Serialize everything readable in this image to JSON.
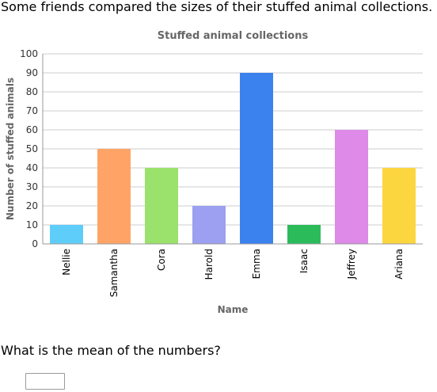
{
  "problem": {
    "intro": "Some friends compared the sizes of their stuffed animal collections.",
    "question": "What is the mean of the numbers?",
    "answer_value": ""
  },
  "chart_data": {
    "type": "bar",
    "title": "Stuffed animal collections",
    "xlabel": "Name",
    "ylabel": "Number of stuffed animals",
    "categories": [
      "Nellie",
      "Samantha",
      "Cora",
      "Harold",
      "Emma",
      "Isaac",
      "Jeffrey",
      "Ariana"
    ],
    "values": [
      10,
      50,
      40,
      20,
      90,
      10,
      60,
      40
    ],
    "colors": [
      "#5fcdfa",
      "#ffa466",
      "#9ae26b",
      "#9d9ff0",
      "#3b82ef",
      "#2bbb5a",
      "#de8ae8",
      "#fbd63e"
    ],
    "ylim": [
      0,
      100
    ],
    "yticks": [
      0,
      10,
      20,
      30,
      40,
      50,
      60,
      70,
      80,
      90,
      100
    ],
    "grid": true,
    "legend": "none"
  }
}
